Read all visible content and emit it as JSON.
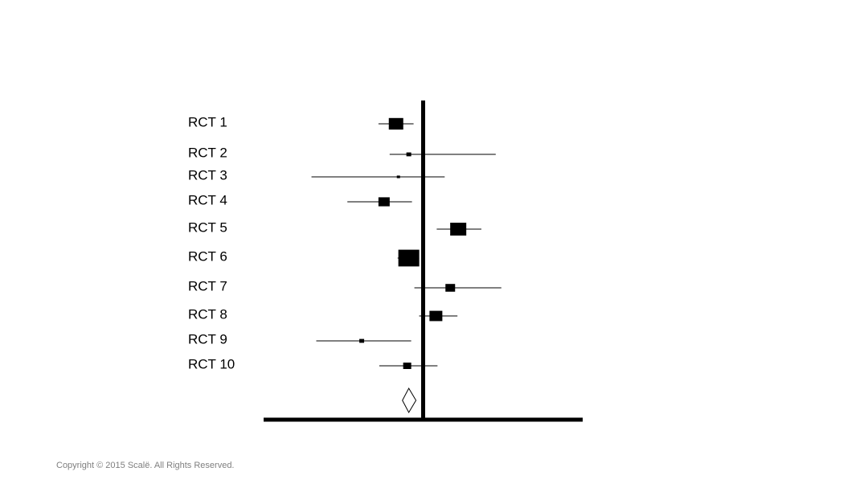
{
  "chart_data": {
    "type": "forest",
    "categories": [
      "RCT 1",
      "RCT 2",
      "RCT 3",
      "RCT 4",
      "RCT 5",
      "RCT 6",
      "RCT 7",
      "RCT 8",
      "RCT 9",
      "RCT 10"
    ],
    "estimates": [
      -0.34,
      -0.18,
      -0.31,
      -0.49,
      0.44,
      -0.18,
      0.34,
      0.16,
      -0.77,
      -0.2
    ],
    "lower": [
      -0.56,
      -0.42,
      -1.4,
      -0.95,
      0.17,
      -0.32,
      -0.11,
      -0.05,
      -1.34,
      -0.55
    ],
    "upper": [
      -0.12,
      0.91,
      0.27,
      -0.14,
      0.73,
      -0.05,
      0.98,
      0.43,
      -0.15,
      0.18
    ],
    "weights": [
      18,
      6,
      4,
      14,
      20,
      26,
      12,
      16,
      6,
      10
    ],
    "summary": {
      "estimate": -0.18,
      "lower": -0.26,
      "upper": -0.09
    },
    "null_value": 0,
    "xlim": [
      -2.0,
      2.0
    ],
    "color": "#000000"
  },
  "footer": "Copyright © 2015 Scalë. All Rights Reserved."
}
